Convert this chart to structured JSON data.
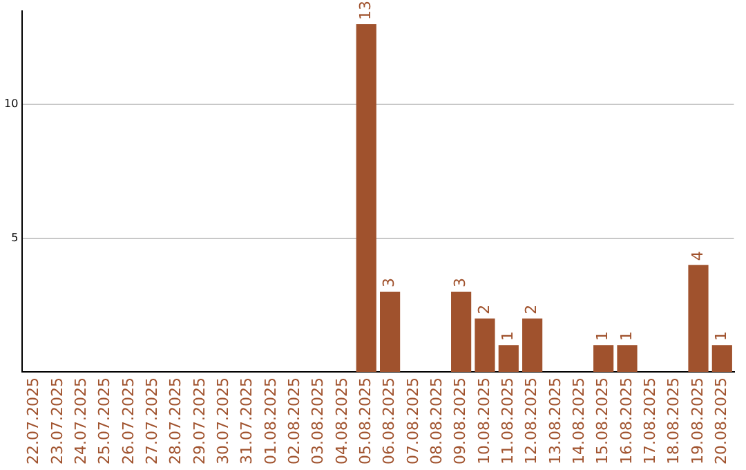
{
  "chart_data": {
    "type": "bar",
    "categories": [
      "22.07.2025",
      "23.07.2025",
      "24.07.2025",
      "25.07.2025",
      "26.07.2025",
      "27.07.2025",
      "28.07.2025",
      "29.07.2025",
      "30.07.2025",
      "31.07.2025",
      "01.08.2025",
      "02.08.2025",
      "03.08.2025",
      "04.08.2025",
      "05.08.2025",
      "06.08.2025",
      "07.08.2025",
      "08.08.2025",
      "09.08.2025",
      "10.08.2025",
      "11.08.2025",
      "12.08.2025",
      "13.08.2025",
      "14.08.2025",
      "15.08.2025",
      "16.08.2025",
      "17.08.2025",
      "18.08.2025",
      "19.08.2025",
      "20.08.2025"
    ],
    "values": [
      null,
      null,
      null,
      null,
      null,
      null,
      null,
      null,
      null,
      null,
      null,
      null,
      null,
      null,
      13,
      3,
      null,
      null,
      3,
      2,
      1,
      2,
      null,
      null,
      1,
      1,
      null,
      null,
      4,
      1
    ],
    "color": "#a0522d",
    "ylim": [
      0,
      13.5
    ],
    "yticks": [
      5,
      10
    ],
    "grid": "y",
    "legend": false,
    "data_labels": true
  }
}
